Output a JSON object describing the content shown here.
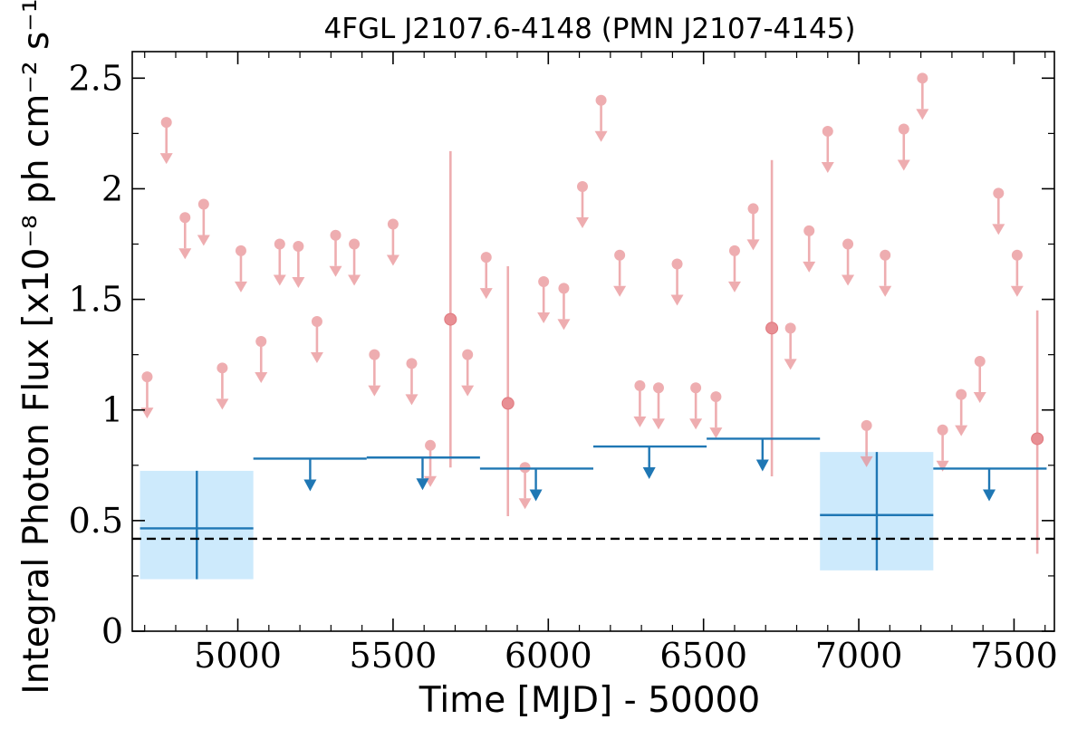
{
  "chart_data": {
    "type": "scatter",
    "title": "4FGL J2107.6-4148 (PMN J2107-4145)",
    "xlabel": "Time [MJD] - 50000",
    "ylabel": "Integral Photon Flux [x10⁻⁸ ph cm⁻² s⁻¹]",
    "xlim": [
      4660,
      7630
    ],
    "ylim": [
      0,
      2.62
    ],
    "x_ticks": [
      5000,
      5500,
      6000,
      6500,
      7000,
      7500
    ],
    "x_tick_labels": [
      "5000",
      "5500",
      "6000",
      "6500",
      "7000",
      "7500"
    ],
    "y_ticks": [
      0,
      0.5,
      1,
      1.5,
      2,
      2.5
    ],
    "y_tick_labels": [
      "0",
      "0.5",
      "1",
      "1.5",
      "2",
      "2.5"
    ],
    "reference_line": {
      "y": 0.418,
      "style": "dashed",
      "color": "#000000"
    },
    "colors": {
      "short_bins": "#e88e93",
      "long_bins": "#1f77b4",
      "long_bins_band": "#cdeafc"
    },
    "series": [
      {
        "binning": "short",
        "upper_limits": [
          {
            "x": 4708,
            "y": 1.15
          },
          {
            "x": 4770,
            "y": 2.3
          },
          {
            "x": 4830,
            "y": 1.87
          },
          {
            "x": 4890,
            "y": 1.93
          },
          {
            "x": 4950,
            "y": 1.19
          },
          {
            "x": 5010,
            "y": 1.72
          },
          {
            "x": 5075,
            "y": 1.31
          },
          {
            "x": 5135,
            "y": 1.75
          },
          {
            "x": 5195,
            "y": 1.74
          },
          {
            "x": 5255,
            "y": 1.4
          },
          {
            "x": 5315,
            "y": 1.79
          },
          {
            "x": 5375,
            "y": 1.75
          },
          {
            "x": 5440,
            "y": 1.25
          },
          {
            "x": 5500,
            "y": 1.84
          },
          {
            "x": 5560,
            "y": 1.21
          },
          {
            "x": 5620,
            "y": 0.84
          },
          {
            "x": 5740,
            "y": 1.25
          },
          {
            "x": 5800,
            "y": 1.69
          },
          {
            "x": 5925,
            "y": 0.74
          },
          {
            "x": 5985,
            "y": 1.58
          },
          {
            "x": 6050,
            "y": 1.55
          },
          {
            "x": 6110,
            "y": 2.01
          },
          {
            "x": 6170,
            "y": 2.4
          },
          {
            "x": 6230,
            "y": 1.7
          },
          {
            "x": 6295,
            "y": 1.11
          },
          {
            "x": 6355,
            "y": 1.1
          },
          {
            "x": 6415,
            "y": 1.66
          },
          {
            "x": 6475,
            "y": 1.1
          },
          {
            "x": 6540,
            "y": 1.06
          },
          {
            "x": 6600,
            "y": 1.72
          },
          {
            "x": 6660,
            "y": 1.91
          },
          {
            "x": 6780,
            "y": 1.37
          },
          {
            "x": 6840,
            "y": 1.81
          },
          {
            "x": 6900,
            "y": 2.26
          },
          {
            "x": 6965,
            "y": 1.75
          },
          {
            "x": 7025,
            "y": 0.93
          },
          {
            "x": 7085,
            "y": 1.7
          },
          {
            "x": 7145,
            "y": 2.27
          },
          {
            "x": 7205,
            "y": 2.5
          },
          {
            "x": 7270,
            "y": 0.91
          },
          {
            "x": 7330,
            "y": 1.07
          },
          {
            "x": 7390,
            "y": 1.22
          },
          {
            "x": 7450,
            "y": 1.98
          },
          {
            "x": 7510,
            "y": 1.7
          }
        ],
        "detections": [
          {
            "x": 5685,
            "y": 1.41,
            "yerr_low": 0.67,
            "yerr_high": 0.76
          },
          {
            "x": 5870,
            "y": 1.03,
            "yerr_low": 0.51,
            "yerr_high": 0.62
          },
          {
            "x": 6720,
            "y": 1.37,
            "yerr_low": 0.67,
            "yerr_high": 0.76
          },
          {
            "x": 7575,
            "y": 0.87,
            "yerr_low": 0.52,
            "yerr_high": 0.58
          }
        ]
      },
      {
        "binning": "long",
        "upper_limits": [
          {
            "x": 5233,
            "x_low": 5050,
            "x_high": 5415,
            "y": 0.78
          },
          {
            "x": 5595,
            "x_low": 5415,
            "x_high": 5780,
            "y": 0.785
          },
          {
            "x": 5960,
            "x_low": 5780,
            "x_high": 6145,
            "y": 0.735
          },
          {
            "x": 6325,
            "x_low": 6145,
            "x_high": 6510,
            "y": 0.835
          },
          {
            "x": 6690,
            "x_low": 6510,
            "x_high": 6875,
            "y": 0.87
          },
          {
            "x": 7420,
            "x_low": 7240,
            "x_high": 7605,
            "y": 0.735
          }
        ],
        "detections": [
          {
            "x": 4868,
            "x_low": 4685,
            "x_high": 5050,
            "y": 0.465,
            "yerr_low": 0.23,
            "yerr_high": 0.26
          },
          {
            "x": 7058,
            "x_low": 6875,
            "x_high": 7240,
            "y": 0.525,
            "yerr_low": 0.25,
            "yerr_high": 0.285
          }
        ]
      }
    ]
  }
}
